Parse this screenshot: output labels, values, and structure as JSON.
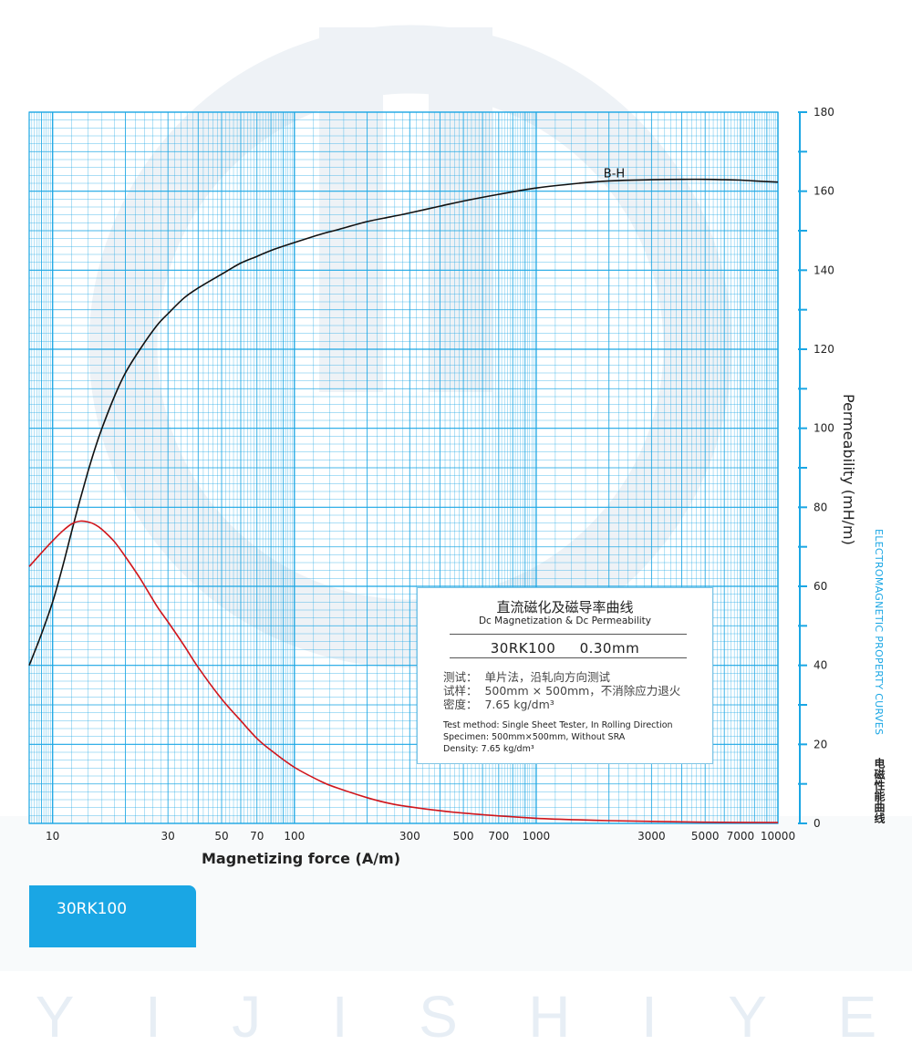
{
  "watermark": {
    "letters": [
      "Y",
      "I",
      "J",
      "I",
      "S",
      "H",
      "I",
      "Y",
      "E"
    ]
  },
  "info_box": {
    "title_cn": "直流磁化及磁导率曲线",
    "title_en": "Dc Magnetization & Dc Permeability",
    "grade_line": "30RK100     0.30mm",
    "cn_lines": [
      "测试：  单片法，沿轧向方向测试",
      "试样：  500mm × 500mm，不消除应力退火",
      "密度：  7.65 kg/dm³"
    ],
    "en_lines": [
      "Test method: Single Sheet Tester, In Rolling Direction",
      "Specimen: 500mm×500mm, Without SRA",
      "Density: 7.65 kg/dm³"
    ]
  },
  "side_text": {
    "en": "ELECTROMAGNETIC PROPERTY CURVES",
    "cn": "电磁性能曲线"
  },
  "grade_tab": {
    "label": "30RK100"
  },
  "colors": {
    "grid": "#1aa6e4",
    "bh_curve": "#111111",
    "permeability_curve": "#d0161c",
    "tab": "#1aa6e4"
  },
  "chart_data": {
    "type": "line",
    "xscale": "log",
    "xlim": [
      8,
      10000
    ],
    "ylim": [
      0,
      180
    ],
    "xlabel": "Magnetizing force (A/m)",
    "ylabel": "Permeability (mH/m)",
    "x_ticks": [
      {
        "value": 10,
        "label": "10"
      },
      {
        "value": 30,
        "label": "30"
      },
      {
        "value": 50,
        "label": "50"
      },
      {
        "value": 70,
        "label": "70"
      },
      {
        "value": 100,
        "label": "100"
      },
      {
        "value": 300,
        "label": "300"
      },
      {
        "value": 500,
        "label": "500"
      },
      {
        "value": 700,
        "label": "700"
      },
      {
        "value": 1000,
        "label": "1000"
      },
      {
        "value": 3000,
        "label": "3000"
      },
      {
        "value": 5000,
        "label": "5000"
      },
      {
        "value": 7000,
        "label": "7000"
      },
      {
        "value": 10000,
        "label": "10000"
      }
    ],
    "y_ticks": [
      {
        "value": 0,
        "label": "0"
      },
      {
        "value": 20,
        "label": "20"
      },
      {
        "value": 40,
        "label": "40"
      },
      {
        "value": 60,
        "label": "60"
      },
      {
        "value": 80,
        "label": "80"
      },
      {
        "value": 100,
        "label": "100"
      },
      {
        "value": 120,
        "label": "120"
      },
      {
        "value": 140,
        "label": "140"
      },
      {
        "value": 160,
        "label": "160"
      },
      {
        "value": 180,
        "label": "180"
      }
    ],
    "grid": true,
    "series": [
      {
        "name": "B-H",
        "x": [
          8,
          9,
          10,
          11,
          12,
          13,
          14,
          15,
          16,
          18,
          20,
          23,
          27,
          30,
          35,
          40,
          50,
          60,
          70,
          80,
          100,
          130,
          150,
          200,
          250,
          300,
          400,
          500,
          700,
          1000,
          1500,
          2000,
          3000,
          4000,
          5000,
          6000,
          7000,
          8000,
          10000
        ],
        "y": [
          40,
          48,
          56,
          65,
          74,
          82,
          89,
          95,
          100,
          108,
          114,
          120,
          126,
          129,
          133,
          135.5,
          139,
          141.8,
          143.5,
          145,
          147,
          149.2,
          150.2,
          152.3,
          153.5,
          154.5,
          156.2,
          157.5,
          159.2,
          160.8,
          162,
          162.6,
          162.9,
          163,
          163,
          162.9,
          162.8,
          162.6,
          162.3
        ]
      },
      {
        "name": "",
        "x": [
          8,
          9,
          10,
          11,
          12,
          13,
          14,
          15,
          16,
          18,
          20,
          23,
          27,
          30,
          35,
          40,
          50,
          60,
          70,
          80,
          100,
          130,
          150,
          200,
          250,
          300,
          400,
          500,
          700,
          1000,
          1500,
          2000,
          3000,
          5000,
          10000
        ],
        "y": [
          65,
          68.5,
          71.5,
          74,
          75.8,
          76.5,
          76.3,
          75.6,
          74.4,
          71.3,
          67.5,
          62,
          55,
          51,
          45,
          39.5,
          31.5,
          26,
          21.5,
          18.5,
          14.2,
          10.5,
          9,
          6.5,
          5,
          4.2,
          3.2,
          2.6,
          1.9,
          1.3,
          0.9,
          0.7,
          0.5,
          0.3,
          0.2
        ]
      }
    ]
  }
}
